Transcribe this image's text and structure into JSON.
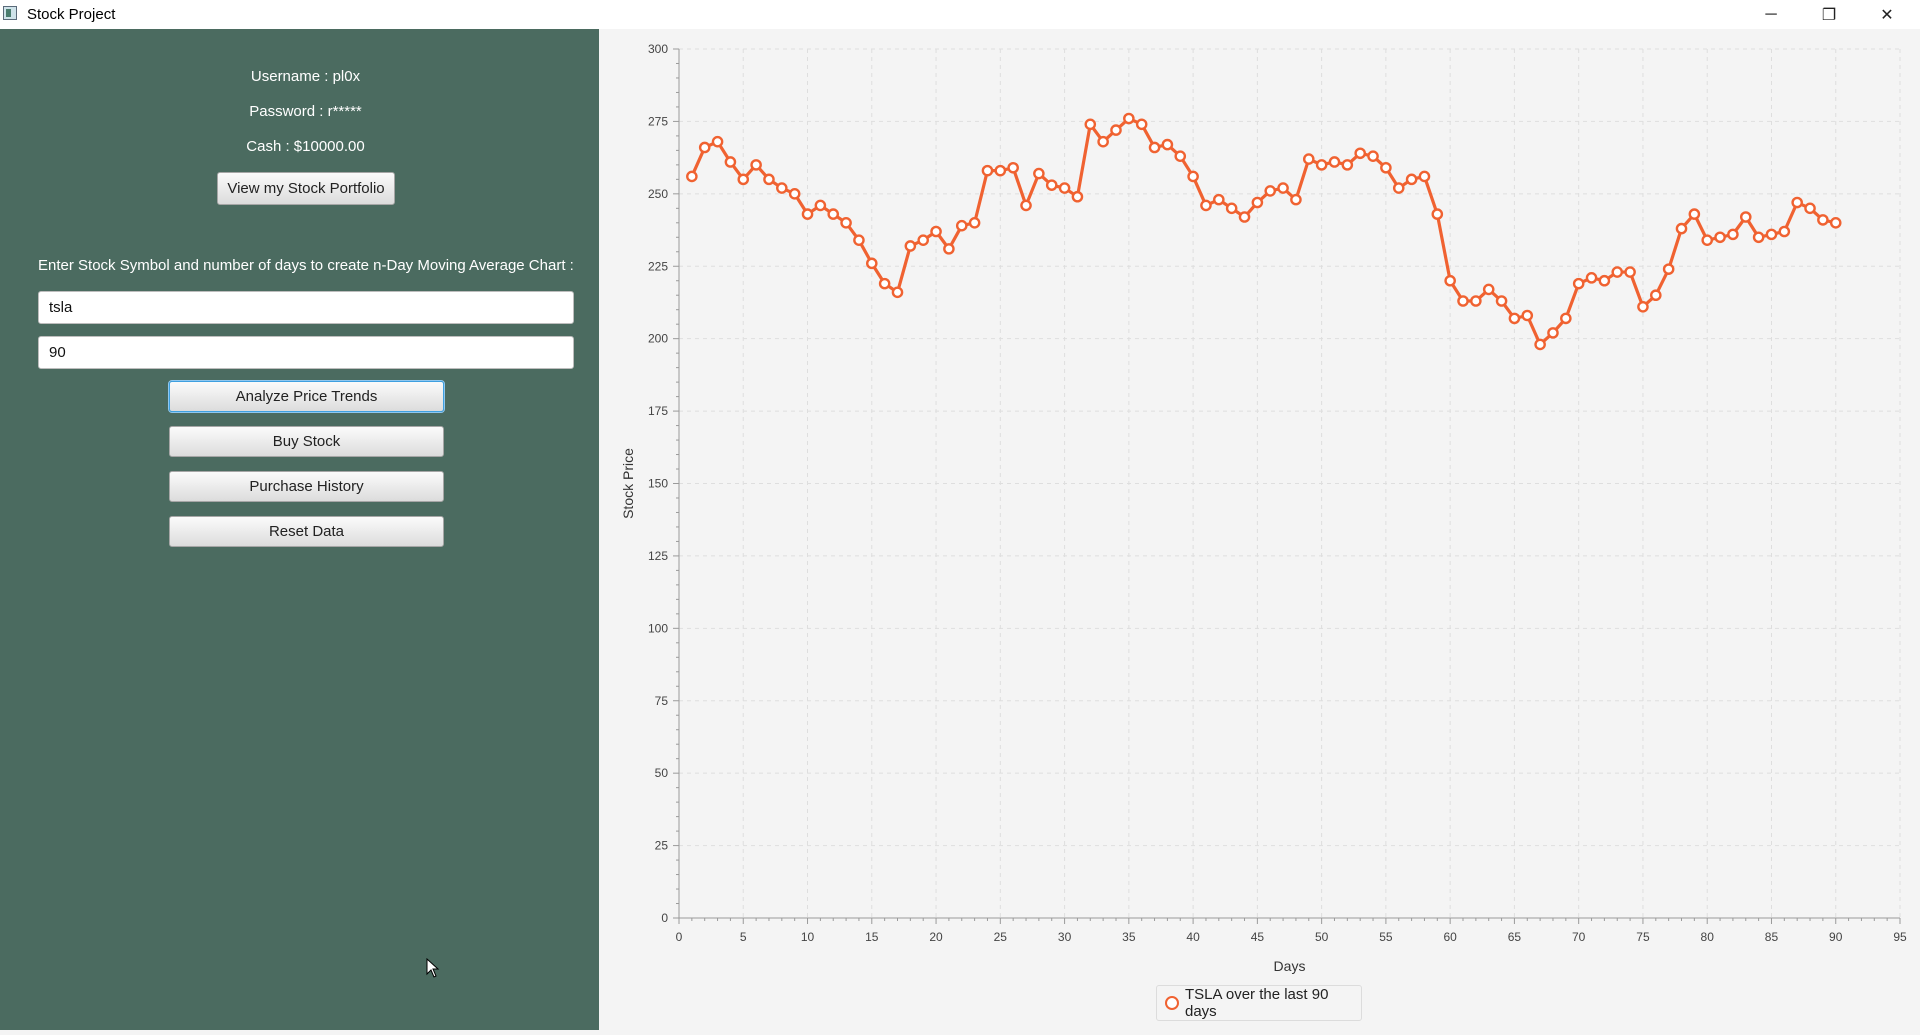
{
  "window": {
    "title": "Stock Project",
    "controls": {
      "minimize": "─",
      "maximize": "❐",
      "close": "✕"
    }
  },
  "sidebar": {
    "username": "Username : pl0x",
    "password": "Password : r*****",
    "cash": "Cash : $10000.00",
    "portfolio_button": "View my Stock Portfolio",
    "prompt": "Enter Stock Symbol and number of days to create n-Day Moving Average Chart :",
    "symbol_value": "tsla",
    "days_value": "90",
    "buttons": {
      "analyze": "Analyze Price Trends",
      "buy": "Buy Stock",
      "history": "Purchase History",
      "reset": "Reset Data"
    }
  },
  "colors": {
    "sidebar_bg": "#4b6b60",
    "series": "#f06231",
    "focus": "#3fa0e0"
  },
  "chart_data": {
    "type": "line",
    "title": "",
    "xlabel": "Days",
    "ylabel": "Stock Price",
    "xlim": [
      0,
      95
    ],
    "ylim": [
      0,
      300
    ],
    "x_ticks": [
      0,
      5,
      10,
      15,
      20,
      25,
      30,
      35,
      40,
      45,
      50,
      55,
      60,
      65,
      70,
      75,
      80,
      85,
      90,
      95
    ],
    "y_ticks": [
      0,
      25,
      50,
      75,
      100,
      125,
      150,
      175,
      200,
      225,
      250,
      275,
      300
    ],
    "grid": true,
    "legend_position": "bottom-center",
    "series": [
      {
        "name": "TSLA over the last 90 days",
        "x": [
          1,
          2,
          3,
          4,
          5,
          6,
          7,
          8,
          9,
          10,
          11,
          12,
          13,
          14,
          15,
          16,
          17,
          18,
          19,
          20,
          21,
          22,
          23,
          24,
          25,
          26,
          27,
          28,
          29,
          30,
          31,
          32,
          33,
          34,
          35,
          36,
          37,
          38,
          39,
          40,
          41,
          42,
          43,
          44,
          45,
          46,
          47,
          48,
          49,
          50,
          51,
          52,
          53,
          54,
          55,
          56,
          57,
          58,
          59,
          60,
          61,
          62,
          63,
          64,
          65,
          66,
          67,
          68,
          69,
          70,
          71,
          72,
          73,
          74,
          75,
          76,
          77,
          78,
          79,
          80,
          81,
          82,
          83,
          84,
          85,
          86,
          87,
          88,
          89,
          90
        ],
        "y": [
          256,
          266,
          268,
          261,
          255,
          260,
          255,
          252,
          250,
          243,
          246,
          243,
          240,
          234,
          226,
          219,
          216,
          232,
          234,
          237,
          231,
          239,
          240,
          258,
          258,
          259,
          246,
          257,
          253,
          252,
          249,
          274,
          268,
          272,
          276,
          274,
          266,
          267,
          263,
          256,
          246,
          248,
          245,
          242,
          247,
          251,
          252,
          248,
          262,
          260,
          261,
          260,
          264,
          263,
          259,
          252,
          255,
          256,
          243,
          220,
          213,
          213,
          217,
          213,
          207,
          208,
          198,
          202,
          207,
          219,
          221,
          220,
          223,
          223,
          211,
          215,
          224,
          238,
          243,
          234,
          235,
          236,
          242,
          235,
          236,
          237,
          247,
          245,
          241,
          240
        ]
      }
    ]
  }
}
